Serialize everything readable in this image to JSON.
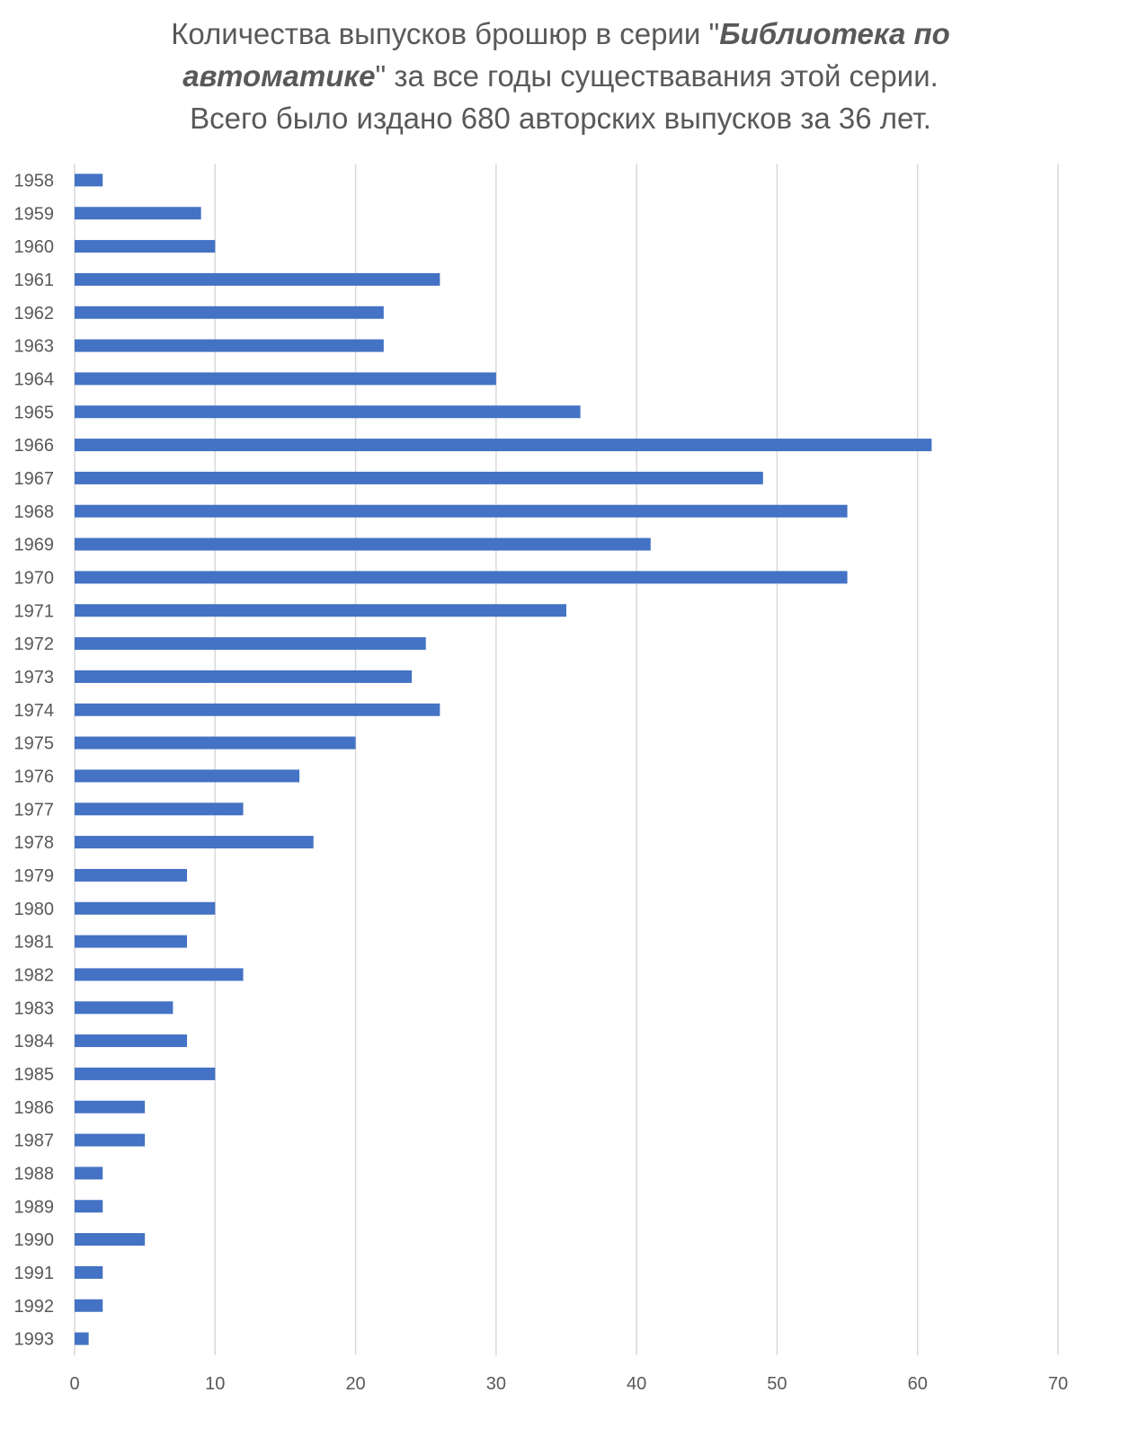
{
  "title": {
    "line1_pre": "Количества выпусков брошюр в серии \"",
    "line1_em": "Библиотека по",
    "line2_em": "автоматике",
    "line2_post": "\" за все годы существавания этой серии.",
    "line3": "Всего было издано 680 авторских выпусков за 36 лет."
  },
  "colors": {
    "bar": "#4472C4",
    "grid": "#D9D9D9",
    "text": "#595959"
  },
  "chart_data": {
    "type": "bar",
    "orientation": "horizontal",
    "title": "Количества выпусков брошюр в серии \"Библиотека по автоматике\" за все годы существавания этой серии. Всего было издано 680 авторских выпусков за 36 лет.",
    "categories": [
      "1958",
      "1959",
      "1960",
      "1961",
      "1962",
      "1963",
      "1964",
      "1965",
      "1966",
      "1967",
      "1968",
      "1969",
      "1970",
      "1971",
      "1972",
      "1973",
      "1974",
      "1975",
      "1976",
      "1977",
      "1978",
      "1979",
      "1980",
      "1981",
      "1982",
      "1983",
      "1984",
      "1985",
      "1986",
      "1987",
      "1988",
      "1989",
      "1990",
      "1991",
      "1992",
      "1993"
    ],
    "values": [
      2,
      9,
      10,
      26,
      22,
      22,
      30,
      36,
      61,
      49,
      55,
      41,
      55,
      35,
      25,
      24,
      26,
      20,
      16,
      12,
      17,
      8,
      10,
      8,
      12,
      7,
      8,
      10,
      5,
      5,
      2,
      2,
      5,
      2,
      2,
      1
    ],
    "xlim": [
      0,
      70
    ],
    "xticks": [
      "0",
      "10",
      "20",
      "30",
      "40",
      "50",
      "60",
      "70"
    ],
    "grid": true,
    "legend": "none",
    "xlabel": "",
    "ylabel": ""
  }
}
